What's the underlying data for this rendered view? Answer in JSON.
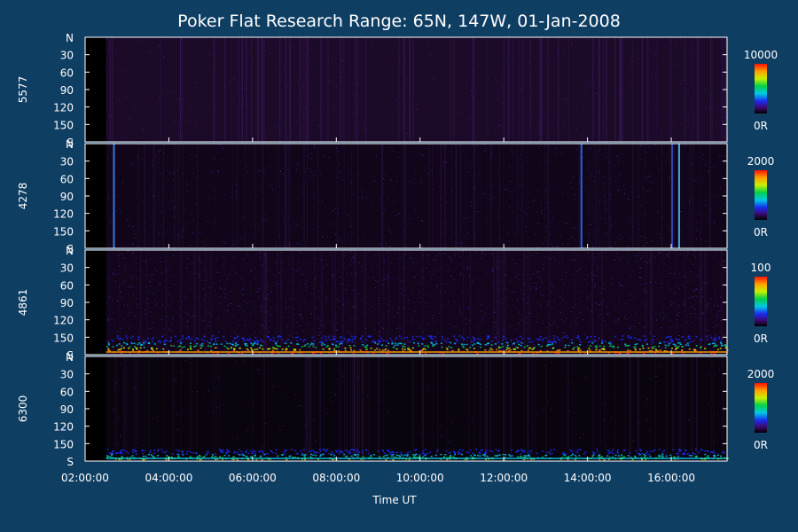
{
  "chart_data": {
    "type": "heatmap",
    "title": "Poker Flat Research Range: 65N, 147W, 01-Jan-2008",
    "xlabel": "Time UT",
    "x_range": [
      "02:00:00",
      "17:20:00"
    ],
    "x_ticks": [
      "02:00:00",
      "04:00:00",
      "06:00:00",
      "08:00:00",
      "10:00:00",
      "12:00:00",
      "14:00:00",
      "16:00:00"
    ],
    "y_range": [
      0,
      180
    ],
    "y_ticks": [
      "N",
      "30",
      "60",
      "90",
      "120",
      "150",
      "S"
    ],
    "colors": {
      "background": "#0f3e63",
      "plot": "#000000",
      "axis": "#ffffff"
    },
    "panels": [
      {
        "ylabel": "5577",
        "colorbar_max": "10000",
        "colorbar_min": "0R",
        "data_start_time": "02:30:00",
        "pattern": "faint diffuse emission throughout, slightly brighter streaks around 11:00-12:00 and 15:30-16:00"
      },
      {
        "ylabel": "4278",
        "colorbar_max": "2000",
        "colorbar_min": "0R",
        "data_start_time": "02:30:00",
        "pattern": "faint speckle with isolated brief enhancements near 02:40, 13:50 and 16:10"
      },
      {
        "ylabel": "4861",
        "colorbar_max": "100",
        "colorbar_min": "0R",
        "data_start_time": "02:30:00",
        "pattern": "noisy speckle with intense emission band near the southern horizon throughout the night"
      },
      {
        "ylabel": "6300",
        "colorbar_max": "2000",
        "colorbar_min": "0R",
        "data_start_time": "02:30:00",
        "pattern": "dark sky with a bright green-cyan band near the southern horizon throughout the night"
      }
    ]
  }
}
